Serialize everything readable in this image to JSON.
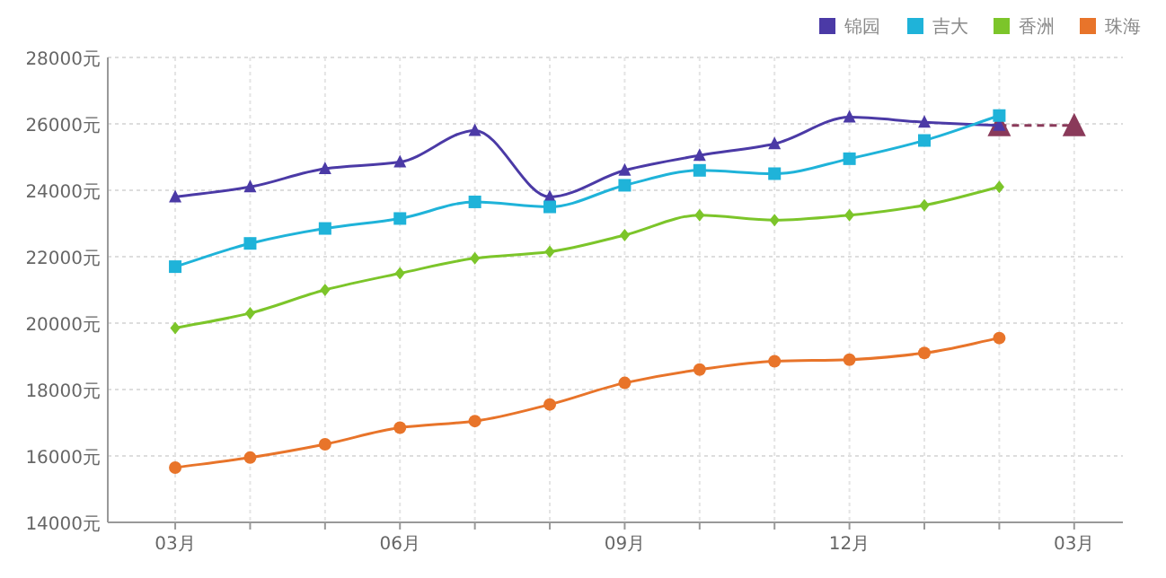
{
  "chart_data": {
    "type": "line",
    "categories": [
      "03月",
      null,
      null,
      "06月",
      null,
      null,
      "09月",
      null,
      null,
      "12月",
      null,
      null,
      "03月"
    ],
    "series": [
      {
        "color": "#8a3a5a",
        "marker": "triangle",
        "line_style": "dashed",
        "values": [
          null,
          null,
          null,
          null,
          null,
          null,
          null,
          null,
          null,
          null,
          null,
          25950,
          25950
        ]
      },
      {
        "name": "锦园",
        "color": "#4b3aa6",
        "marker": "triangle",
        "values": [
          23800,
          24100,
          24650,
          24850,
          25800,
          23800,
          24600,
          25050,
          25400,
          26200,
          26050,
          25950,
          null
        ]
      },
      {
        "name": "吉大",
        "color": "#1fb3d9",
        "marker": "square",
        "values": [
          21700,
          22400,
          22850,
          23150,
          23650,
          23500,
          24150,
          24600,
          24500,
          24950,
          25500,
          26250,
          null
        ]
      },
      {
        "name": "香洲",
        "color": "#7cc52a",
        "marker": "diamond",
        "values": [
          19850,
          20300,
          21000,
          21500,
          21950,
          22150,
          22650,
          23250,
          23100,
          23250,
          23550,
          24100,
          null
        ]
      },
      {
        "name": "珠海",
        "color": "#e8742a",
        "marker": "circle",
        "values": [
          15650,
          15950,
          16350,
          16850,
          17050,
          17550,
          18200,
          18600,
          18850,
          18900,
          19100,
          19550,
          null
        ]
      }
    ],
    "ylim": [
      14000,
      28000
    ],
    "yticks": [
      {
        "value": 14000,
        "label": "14000元"
      },
      {
        "value": 16000,
        "label": "16000元"
      },
      {
        "value": 18000,
        "label": "18000元"
      },
      {
        "value": 20000,
        "label": "20000元"
      },
      {
        "value": 22000,
        "label": "22000元"
      },
      {
        "value": 24000,
        "label": "24000元"
      },
      {
        "value": 26000,
        "label": "26000元"
      },
      {
        "value": 28000,
        "label": "28000元"
      }
    ],
    "grid": true,
    "legend": "top right"
  }
}
